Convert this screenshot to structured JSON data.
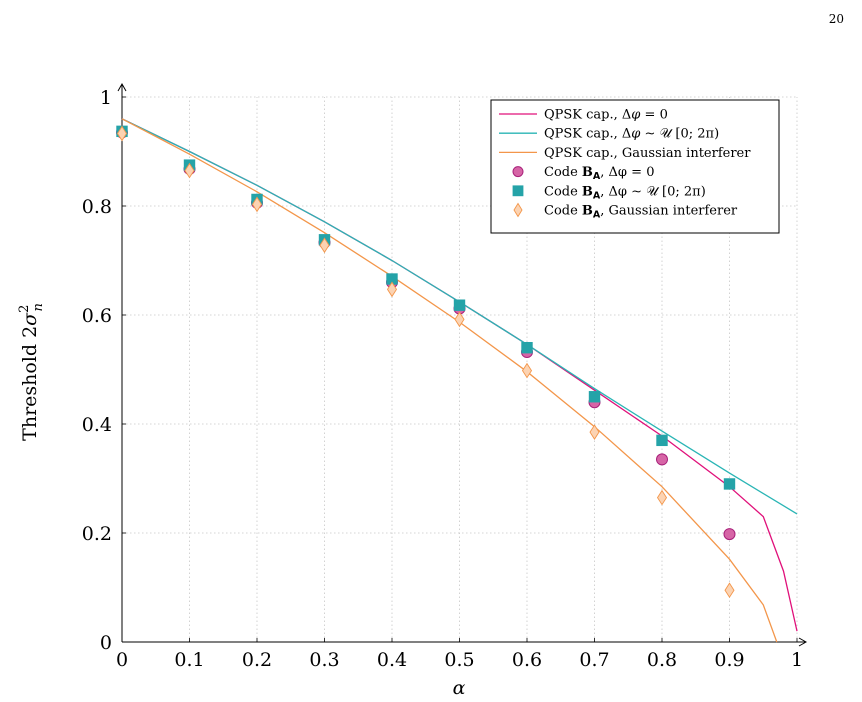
{
  "page": {
    "number": "20"
  },
  "chart_data": {
    "type": "line",
    "xlabel": "α",
    "ylabel": "Threshold 2σ²ₙ",
    "ylabel_parts": {
      "base": "Threshold 2σ",
      "sup": "2",
      "sub": "n"
    },
    "xlim": [
      0,
      1
    ],
    "ylim": [
      0,
      1
    ],
    "xticks": [
      "0",
      "0.1",
      "0.2",
      "0.3",
      "0.4",
      "0.5",
      "0.6",
      "0.7",
      "0.8",
      "0.9",
      "1"
    ],
    "yticks": [
      "0",
      "0.2",
      "0.4",
      "0.6",
      "0.8",
      "1"
    ],
    "grid": true,
    "legend_position": "top-right",
    "series": [
      {
        "name": "QPSK cap., Δφ = 0",
        "kind": "line",
        "color": "#e0107a",
        "x": [
          0,
          0.1,
          0.2,
          0.3,
          0.4,
          0.5,
          0.6,
          0.7,
          0.8,
          0.9,
          0.95,
          0.98,
          1.0
        ],
        "y": [
          0.96,
          0.9,
          0.838,
          0.771,
          0.7,
          0.624,
          0.546,
          0.462,
          0.378,
          0.285,
          0.23,
          0.13,
          0.02
        ]
      },
      {
        "name": "QPSK cap., Δφ ∼ 𝒰 [0; 2π)",
        "kind": "line",
        "color": "#2ab5b5",
        "x": [
          0,
          0.1,
          0.2,
          0.3,
          0.4,
          0.5,
          0.6,
          0.7,
          0.8,
          0.9,
          1.0
        ],
        "y": [
          0.96,
          0.9,
          0.838,
          0.771,
          0.7,
          0.624,
          0.546,
          0.465,
          0.387,
          0.31,
          0.235
        ]
      },
      {
        "name": "QPSK cap., Gaussian interferer",
        "kind": "line",
        "color": "#f3964a",
        "x": [
          0,
          0.1,
          0.2,
          0.3,
          0.4,
          0.5,
          0.6,
          0.7,
          0.8,
          0.9,
          0.95,
          0.97
        ],
        "y": [
          0.96,
          0.895,
          0.826,
          0.751,
          0.671,
          0.587,
          0.496,
          0.395,
          0.285,
          0.152,
          0.068,
          0.0
        ]
      },
      {
        "name": "Code B_A, Δφ = 0",
        "kind": "marker",
        "marker": "circle",
        "color": "#d665a6",
        "stroke": "#a8207a",
        "x": [
          0,
          0.1,
          0.2,
          0.3,
          0.4,
          0.5,
          0.6,
          0.7,
          0.8,
          0.9
        ],
        "y": [
          0.935,
          0.868,
          0.806,
          0.733,
          0.66,
          0.612,
          0.532,
          0.44,
          0.335,
          0.198
        ]
      },
      {
        "name": "Code B_A, Δφ ∼ 𝒰 [0; 2π)",
        "kind": "marker",
        "marker": "square",
        "color": "#25a3a8",
        "stroke": "#25a3a8",
        "x": [
          0,
          0.1,
          0.2,
          0.3,
          0.4,
          0.5,
          0.6,
          0.7,
          0.8,
          0.9
        ],
        "y": [
          0.937,
          0.875,
          0.812,
          0.738,
          0.666,
          0.618,
          0.54,
          0.45,
          0.37,
          0.29
        ]
      },
      {
        "name": "Code B_A, Gaussian interferer",
        "kind": "marker",
        "marker": "diamond",
        "color": "#fcd3b2",
        "stroke": "#f3964a",
        "x": [
          0,
          0.1,
          0.2,
          0.3,
          0.4,
          0.5,
          0.6,
          0.7,
          0.8,
          0.9
        ],
        "y": [
          0.933,
          0.865,
          0.803,
          0.728,
          0.647,
          0.592,
          0.498,
          0.385,
          0.265,
          0.095
        ]
      }
    ],
    "legend": [
      {
        "pre": "QPSK cap., Δ",
        "greek": "φ",
        "post": " = 0"
      },
      {
        "pre": "QPSK cap., Δ",
        "greek": "φ",
        "post": " ∼ 𝒰 [0; 2π)"
      },
      {
        "pre": "QPSK cap., Gaussian interferer",
        "greek": "",
        "post": ""
      },
      {
        "pre": "Code ",
        "bold": "B",
        "sub": "A",
        "post": ", Δφ = 0"
      },
      {
        "pre": "Code ",
        "bold": "B",
        "sub": "A",
        "post": ", Δφ ∼ 𝒰 [0; 2π)"
      },
      {
        "pre": "Code ",
        "bold": "B",
        "sub": "A",
        "post": ", Gaussian interferer"
      }
    ]
  }
}
